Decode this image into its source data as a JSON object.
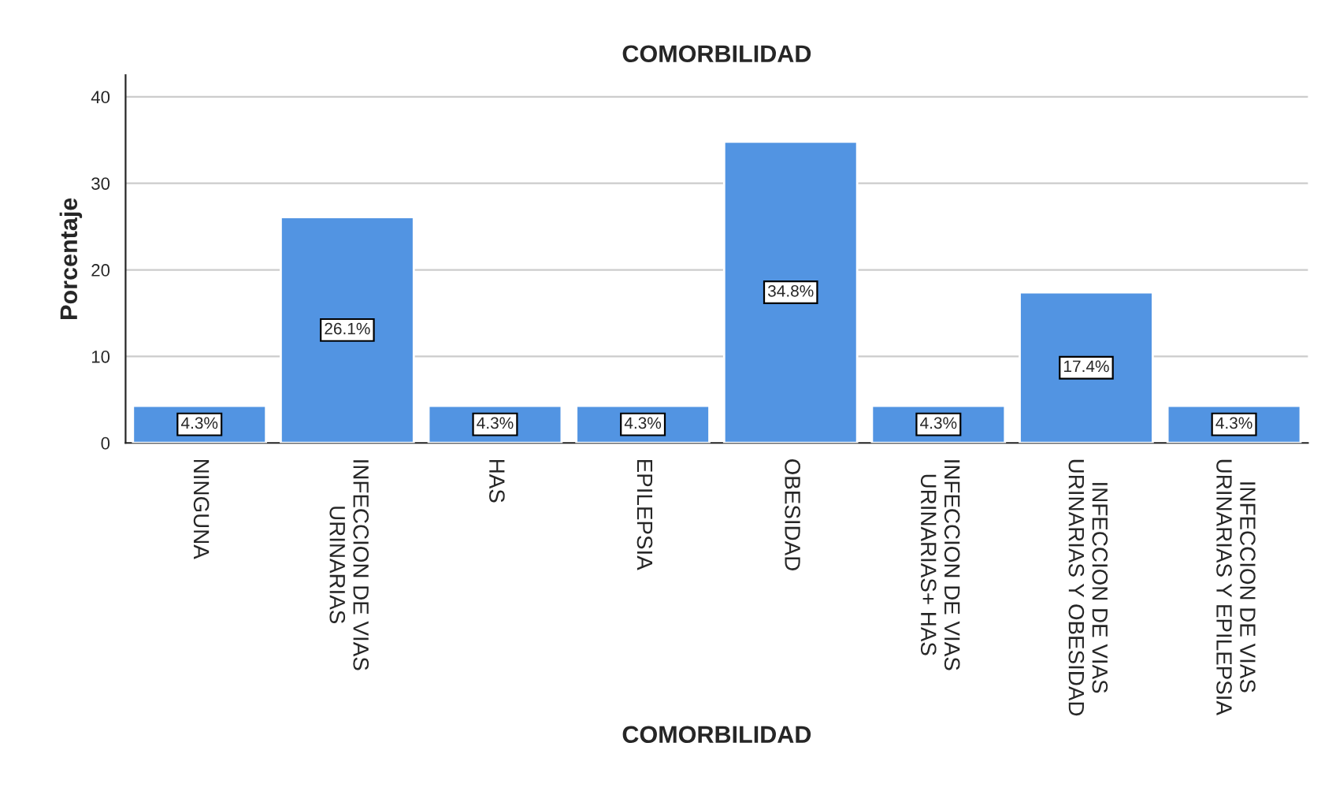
{
  "chart_data": {
    "type": "bar",
    "title": "COMORBILIDAD",
    "xlabel": "COMORBILIDAD",
    "ylabel": "Porcentaje",
    "categories": [
      "NINGUNA",
      "INFECCION DE VIAS\nURINARIAS",
      "HAS",
      "EPILEPSIA",
      "OBESIDAD",
      "INFECCION DE VIAS\nURINARIAS+ HAS",
      "INFECCION DE VIAS\nURINARIAS Y OBESIDAD",
      "INFECCION DE VIAS\nURINARIAS Y EPILEPSIA"
    ],
    "values": [
      4.3,
      26.1,
      4.3,
      4.3,
      34.8,
      4.3,
      17.4,
      4.3
    ],
    "value_labels": [
      "4.3%",
      "26.1%",
      "4.3%",
      "4.3%",
      "34.8%",
      "4.3%",
      "17.4%",
      "4.3%"
    ],
    "color": "#5294e2",
    "ylim": [
      0,
      42.5
    ],
    "yticks": [
      0,
      10,
      20,
      30,
      40
    ],
    "grid": "y"
  }
}
